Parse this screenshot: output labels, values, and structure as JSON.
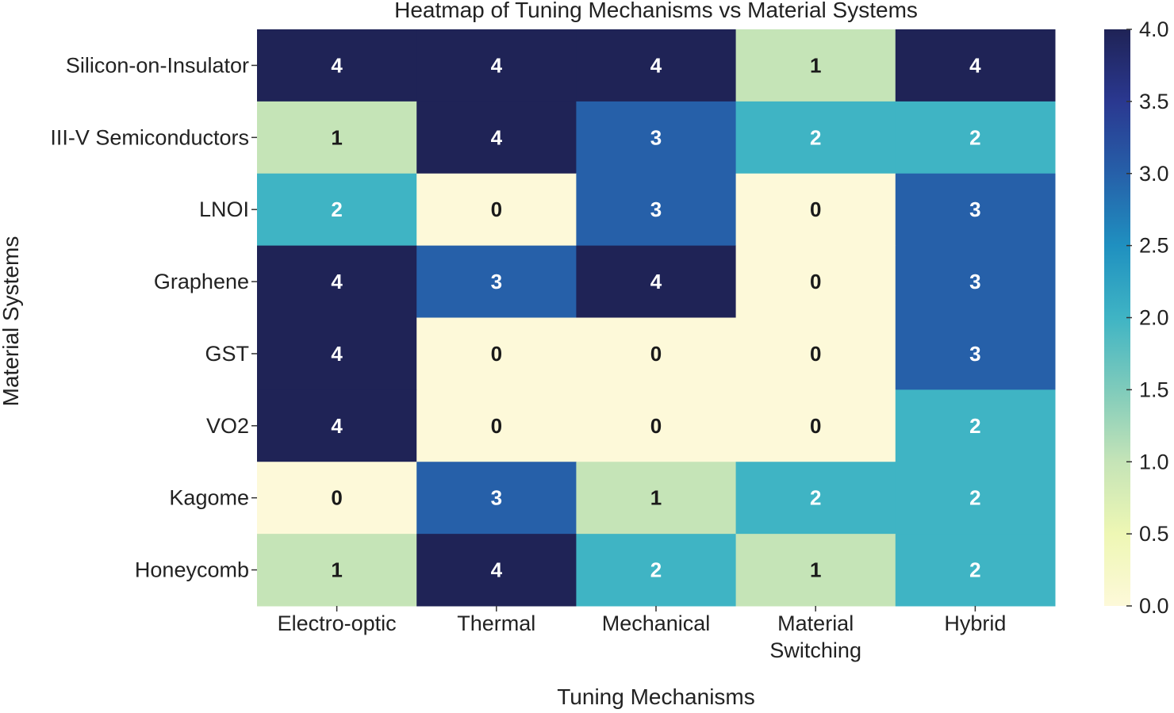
{
  "chart_data": {
    "type": "heatmap",
    "title": "Heatmap of Tuning Mechanisms vs Material Systems",
    "xlabel": "Tuning Mechanisms",
    "ylabel": "Material Systems",
    "x_categories": [
      "Electro-optic",
      "Thermal",
      "Mechanical",
      "Material Switching",
      "Hybrid"
    ],
    "y_categories": [
      "Silicon-on-Insulator",
      "III-V Semiconductors",
      "LNOI",
      "Graphene",
      "GST",
      "VO2",
      "Kagome",
      "Honeycomb"
    ],
    "values": [
      [
        4,
        4,
        4,
        1,
        4
      ],
      [
        1,
        4,
        3,
        2,
        2
      ],
      [
        2,
        0,
        3,
        0,
        3
      ],
      [
        4,
        3,
        4,
        0,
        3
      ],
      [
        4,
        0,
        0,
        0,
        3
      ],
      [
        4,
        0,
        0,
        0,
        2
      ],
      [
        0,
        3,
        1,
        2,
        2
      ],
      [
        1,
        4,
        2,
        1,
        2
      ]
    ],
    "colorbar": {
      "range": [
        0,
        4
      ],
      "ticks": [
        "0.0",
        "0.5",
        "1.0",
        "1.5",
        "2.0",
        "2.5",
        "3.0",
        "3.5",
        "4.0"
      ],
      "colormap": "YlGnBu",
      "colors": [
        "#fdf9d9",
        "#c5e4b7",
        "#3fb4c4",
        "#2660a9",
        "#1f2356"
      ]
    },
    "annotations": true
  }
}
